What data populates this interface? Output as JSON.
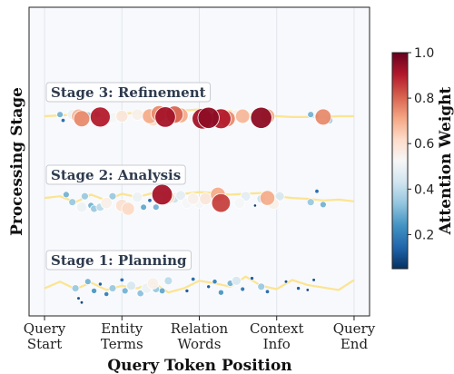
{
  "chart_data": {
    "type": "scatter",
    "title": "",
    "xlabel": "Query Token Position",
    "ylabel": "Processing Stage",
    "xlim": [
      -0.05,
      1.05
    ],
    "x_ticks": [
      {
        "value": 0.0,
        "label": [
          "Query",
          "Start"
        ]
      },
      {
        "value": 0.25,
        "label": [
          "Entity",
          "Terms"
        ]
      },
      {
        "value": 0.5,
        "label": [
          "Relation",
          "Words"
        ]
      },
      {
        "value": 0.75,
        "label": [
          "Context",
          "Info"
        ]
      },
      {
        "value": 1.0,
        "label": [
          "Query",
          "End"
        ]
      }
    ],
    "grid": true,
    "stages": [
      {
        "name": "Stage 1: Planning",
        "level": 1
      },
      {
        "name": "Stage 2: Analysis",
        "level": 2
      },
      {
        "name": "Stage 3: Refinement",
        "level": 3
      }
    ],
    "colorbar": {
      "label": "Attention Weight",
      "colormap": "RdBu_r",
      "range": [
        0.05,
        1.0
      ],
      "ticks": [
        0.2,
        0.4,
        0.6,
        0.8,
        1.0
      ],
      "tick_labels": [
        "0.2",
        "0.4",
        "0.6",
        "0.8",
        "1.0"
      ]
    },
    "series": [
      {
        "stage": 1,
        "points": [
          {
            "x": 0.1,
            "dy": -0.05,
            "w": 0.35
          },
          {
            "x": 0.11,
            "dy": -0.17,
            "w": 0.1
          },
          {
            "x": 0.12,
            "dy": -0.22,
            "w": 0.08
          },
          {
            "x": 0.14,
            "dy": 0.03,
            "w": 0.3
          },
          {
            "x": 0.16,
            "dy": -0.08,
            "w": 0.25
          },
          {
            "x": 0.18,
            "dy": 0.0,
            "w": 0.12
          },
          {
            "x": 0.2,
            "dy": -0.12,
            "w": 0.2
          },
          {
            "x": 0.22,
            "dy": -0.05,
            "w": 0.35
          },
          {
            "x": 0.25,
            "dy": 0.05,
            "w": 0.15
          },
          {
            "x": 0.26,
            "dy": -0.08,
            "w": 0.3
          },
          {
            "x": 0.28,
            "dy": -0.02,
            "w": 0.45
          },
          {
            "x": 0.31,
            "dy": -0.11,
            "w": 0.33
          },
          {
            "x": 0.33,
            "dy": -0.05,
            "w": 0.5
          },
          {
            "x": 0.35,
            "dy": 0.01,
            "w": 0.55
          },
          {
            "x": 0.36,
            "dy": -0.06,
            "w": 0.35
          },
          {
            "x": 0.38,
            "dy": -0.08,
            "w": 0.28
          },
          {
            "x": 0.4,
            "dy": 0.04,
            "w": 0.4
          },
          {
            "x": 0.46,
            "dy": -0.08,
            "w": 0.12
          },
          {
            "x": 0.48,
            "dy": 0.06,
            "w": 0.15
          },
          {
            "x": 0.53,
            "dy": -0.03,
            "w": 0.12
          },
          {
            "x": 0.55,
            "dy": 0.03,
            "w": 0.2
          },
          {
            "x": 0.57,
            "dy": -0.1,
            "w": 0.25
          },
          {
            "x": 0.6,
            "dy": 0.01,
            "w": 0.3
          },
          {
            "x": 0.62,
            "dy": 0.04,
            "w": 0.45
          },
          {
            "x": 0.64,
            "dy": -0.06,
            "w": 0.18
          },
          {
            "x": 0.67,
            "dy": 0.07,
            "w": 0.12
          },
          {
            "x": 0.7,
            "dy": -0.03,
            "w": 0.35
          },
          {
            "x": 0.72,
            "dy": -0.09,
            "w": 0.15
          },
          {
            "x": 0.78,
            "dy": 0.03,
            "w": 0.1
          },
          {
            "x": 0.82,
            "dy": -0.05,
            "w": 0.12
          },
          {
            "x": 0.85,
            "dy": -0.07,
            "w": 0.08
          },
          {
            "x": 0.87,
            "dy": 0.05,
            "w": 0.1
          }
        ]
      },
      {
        "stage": 2,
        "points": [
          {
            "x": 0.07,
            "dy": 0.05,
            "w": 0.3
          },
          {
            "x": 0.09,
            "dy": -0.04,
            "w": 0.35
          },
          {
            "x": 0.12,
            "dy": -0.1,
            "w": 0.5
          },
          {
            "x": 0.13,
            "dy": 0.03,
            "w": 0.35
          },
          {
            "x": 0.15,
            "dy": -0.08,
            "w": 0.3
          },
          {
            "x": 0.16,
            "dy": -0.12,
            "w": 0.35
          },
          {
            "x": 0.18,
            "dy": -0.1,
            "w": 0.4
          },
          {
            "x": 0.2,
            "dy": -0.05,
            "w": 0.55
          },
          {
            "x": 0.22,
            "dy": 0.03,
            "w": 0.35
          },
          {
            "x": 0.25,
            "dy": -0.08,
            "w": 0.6
          },
          {
            "x": 0.27,
            "dy": -0.12,
            "w": 0.62
          },
          {
            "x": 0.3,
            "dy": 0.02,
            "w": 0.5
          },
          {
            "x": 0.32,
            "dy": -0.1,
            "w": 0.28
          },
          {
            "x": 0.34,
            "dy": -0.02,
            "w": 0.15
          },
          {
            "x": 0.36,
            "dy": -0.1,
            "w": 0.3
          },
          {
            "x": 0.38,
            "dy": 0.05,
            "w": 0.92
          },
          {
            "x": 0.4,
            "dy": 0.02,
            "w": 0.62
          },
          {
            "x": 0.42,
            "dy": 0.0,
            "w": 0.42
          },
          {
            "x": 0.44,
            "dy": 0.04,
            "w": 0.48
          },
          {
            "x": 0.46,
            "dy": -0.05,
            "w": 0.52
          },
          {
            "x": 0.48,
            "dy": 0.0,
            "w": 0.55
          },
          {
            "x": 0.5,
            "dy": -0.05,
            "w": 0.52
          },
          {
            "x": 0.52,
            "dy": 0.0,
            "w": 0.58
          },
          {
            "x": 0.55,
            "dy": 0.0,
            "w": 0.55
          },
          {
            "x": 0.56,
            "dy": 0.05,
            "w": 0.7
          },
          {
            "x": 0.57,
            "dy": -0.05,
            "w": 0.85
          },
          {
            "x": 0.63,
            "dy": -0.05,
            "w": 0.52
          },
          {
            "x": 0.65,
            "dy": 0.03,
            "w": 0.48
          },
          {
            "x": 0.68,
            "dy": -0.08,
            "w": 0.05
          },
          {
            "x": 0.7,
            "dy": 0.0,
            "w": 0.42
          },
          {
            "x": 0.72,
            "dy": 0.01,
            "w": 0.7
          },
          {
            "x": 0.74,
            "dy": -0.06,
            "w": 0.55
          },
          {
            "x": 0.76,
            "dy": 0.03,
            "w": 0.45
          },
          {
            "x": 0.86,
            "dy": -0.04,
            "w": 0.35
          },
          {
            "x": 0.88,
            "dy": 0.09,
            "w": 0.15
          },
          {
            "x": 0.9,
            "dy": -0.07,
            "w": 0.3
          }
        ]
      },
      {
        "stage": 3,
        "points": [
          {
            "x": 0.05,
            "dy": 0.02,
            "w": 0.3
          },
          {
            "x": 0.06,
            "dy": -0.05,
            "w": 0.15
          },
          {
            "x": 0.09,
            "dy": 0.02,
            "w": 0.5
          },
          {
            "x": 0.11,
            "dy": 0.0,
            "w": 0.68
          },
          {
            "x": 0.12,
            "dy": -0.03,
            "w": 0.75
          },
          {
            "x": 0.13,
            "dy": 0.03,
            "w": 0.12
          },
          {
            "x": 0.14,
            "dy": 0.01,
            "w": 0.35
          },
          {
            "x": 0.17,
            "dy": 0.02,
            "w": 0.3
          },
          {
            "x": 0.18,
            "dy": -0.01,
            "w": 0.9
          },
          {
            "x": 0.2,
            "dy": -0.05,
            "w": 0.48
          },
          {
            "x": 0.22,
            "dy": -0.02,
            "w": 0.52
          },
          {
            "x": 0.25,
            "dy": 0.0,
            "w": 0.58
          },
          {
            "x": 0.3,
            "dy": 0.02,
            "w": 0.55
          },
          {
            "x": 0.34,
            "dy": 0.0,
            "w": 0.7
          },
          {
            "x": 0.35,
            "dy": -0.04,
            "w": 0.62
          },
          {
            "x": 0.37,
            "dy": 0.03,
            "w": 0.75
          },
          {
            "x": 0.39,
            "dy": -0.01,
            "w": 0.92
          },
          {
            "x": 0.4,
            "dy": 0.0,
            "w": 0.6
          },
          {
            "x": 0.42,
            "dy": 0.02,
            "w": 0.8
          },
          {
            "x": 0.44,
            "dy": 0.01,
            "w": 0.7
          },
          {
            "x": 0.48,
            "dy": -0.02,
            "w": 0.52
          },
          {
            "x": 0.51,
            "dy": -0.03,
            "w": 0.92
          },
          {
            "x": 0.53,
            "dy": -0.02,
            "w": 0.95
          },
          {
            "x": 0.57,
            "dy": -0.03,
            "w": 0.9
          },
          {
            "x": 0.59,
            "dy": -0.03,
            "w": 0.75
          },
          {
            "x": 0.62,
            "dy": 0.01,
            "w": 0.55
          },
          {
            "x": 0.64,
            "dy": 0.0,
            "w": 0.68
          },
          {
            "x": 0.65,
            "dy": -0.02,
            "w": 0.5
          },
          {
            "x": 0.7,
            "dy": -0.02,
            "w": 0.95
          },
          {
            "x": 0.72,
            "dy": 0.0,
            "w": 0.7
          },
          {
            "x": 0.86,
            "dy": 0.02,
            "w": 0.3
          },
          {
            "x": 0.88,
            "dy": 0.0,
            "w": 0.2
          },
          {
            "x": 0.9,
            "dy": -0.01,
            "w": 0.75
          },
          {
            "x": 0.92,
            "dy": -0.05,
            "w": 0.35
          }
        ]
      }
    ],
    "flow_lines": [
      {
        "stage": 1,
        "x": [
          0.0,
          0.05,
          0.1,
          0.15,
          0.2,
          0.25,
          0.3,
          0.35,
          0.4,
          0.45,
          0.5,
          0.55,
          0.6,
          0.65,
          0.7,
          0.75,
          0.8,
          0.85,
          0.9,
          0.95,
          1.0
        ],
        "dy": [
          -0.05,
          0.03,
          -0.06,
          0.02,
          -0.07,
          -0.02,
          -0.05,
          0.02,
          -0.1,
          -0.05,
          0.04,
          0.01,
          -0.03,
          0.09,
          -0.02,
          -0.06,
          0.05,
          -0.01,
          -0.04,
          -0.07,
          0.05
        ]
      },
      {
        "stage": 2,
        "x": [
          0.0,
          0.05,
          0.1,
          0.15,
          0.2,
          0.25,
          0.3,
          0.35,
          0.4,
          0.45,
          0.5,
          0.55,
          0.6,
          0.65,
          0.7,
          0.75,
          0.8,
          0.85,
          0.9,
          0.95,
          1.0
        ],
        "dy": [
          0.01,
          0.03,
          -0.04,
          0.05,
          -0.02,
          0.06,
          0.02,
          0.07,
          0.05,
          0.06,
          0.08,
          0.07,
          0.05,
          0.06,
          0.07,
          0.03,
          0.01,
          0.0,
          -0.02,
          -0.01,
          -0.03
        ]
      },
      {
        "stage": 3,
        "x": [
          0.0,
          0.05,
          0.1,
          0.15,
          0.2,
          0.25,
          0.3,
          0.35,
          0.4,
          0.45,
          0.5,
          0.55,
          0.6,
          0.65,
          0.7,
          0.75,
          0.8,
          0.85,
          0.9,
          0.95,
          1.0
        ],
        "dy": [
          0.0,
          0.01,
          0.02,
          0.01,
          0.01,
          0.03,
          0.04,
          0.05,
          0.06,
          0.07,
          0.08,
          0.07,
          0.06,
          0.03,
          0.01,
          0.0,
          -0.01,
          -0.01,
          -0.01,
          0.0,
          0.0
        ]
      }
    ]
  }
}
